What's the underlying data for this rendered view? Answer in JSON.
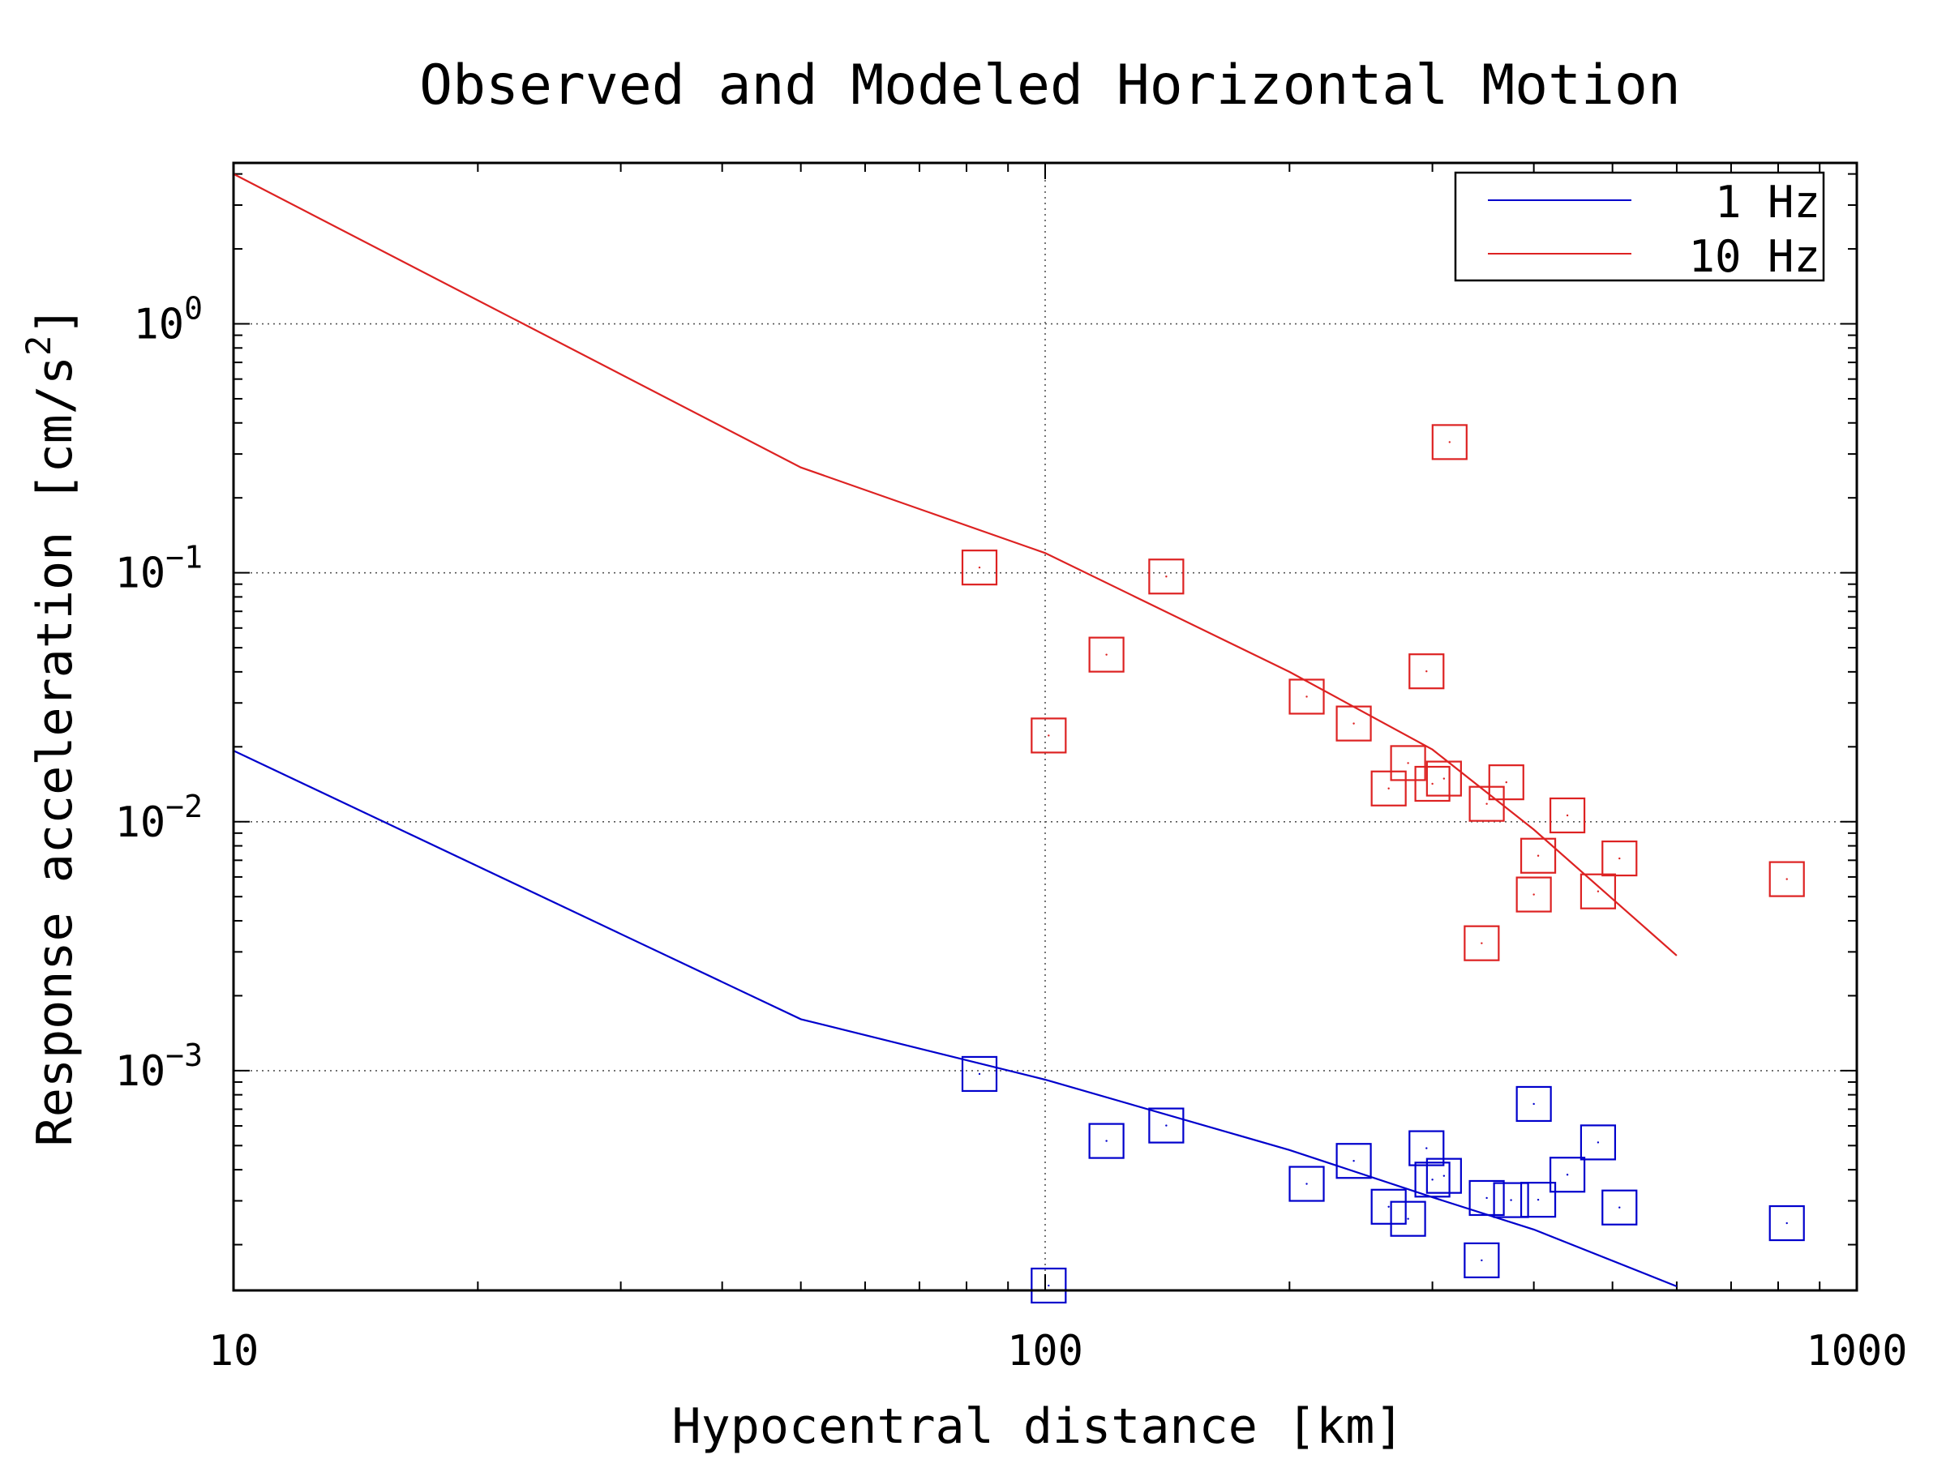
{
  "chart_data": {
    "type": "scatter",
    "title": "Observed and Modeled Horizontal Motion",
    "xlabel": "Hypocentral distance [km]",
    "ylabel": "Response acceleration [cm/s",
    "ylabel_sup": "2",
    "ylabel_close": "]",
    "xscale": "log",
    "yscale": "log",
    "xlim": [
      10,
      1000
    ],
    "ylim": [
      0.000131,
      4.43
    ],
    "grid": true,
    "legend_position": "top-right",
    "x_ticks": [
      {
        "value": 10,
        "label": "10"
      },
      {
        "value": 100,
        "label": "100"
      },
      {
        "value": 1000,
        "label": "1000"
      }
    ],
    "y_ticks": [
      {
        "value": 0.001,
        "base": "10",
        "exp": "−3"
      },
      {
        "value": 0.01,
        "base": "10",
        "exp": "−2"
      },
      {
        "value": 0.1,
        "base": "10",
        "exp": "−1"
      },
      {
        "value": 1,
        "base": "10",
        "exp": "0"
      }
    ],
    "series": [
      {
        "name": "1 Hz",
        "color": "#0000cc",
        "line": {
          "x": [
            10,
            50,
            100,
            200,
            300,
            400,
            600
          ],
          "y": [
            0.0193,
            0.00161,
            0.00092,
            0.00048,
            0.00031,
            0.00023,
            0.000136
          ]
        },
        "observed": {
          "x": [
            83,
            101,
            119,
            141,
            210,
            240,
            265,
            280,
            295,
            300,
            310,
            345,
            350,
            375,
            400,
            405,
            440,
            480,
            510,
            820
          ],
          "y": [
            0.00097,
            0.000137,
            0.000522,
            0.000602,
            0.000351,
            0.000434,
            0.000284,
            0.000254,
            0.000488,
            0.000365,
            0.000378,
            0.000173,
            0.000308,
            0.000302,
            0.000735,
            0.000303,
            0.000382,
            0.000515,
            0.000282,
            0.000244
          ]
        }
      },
      {
        "name": "10 Hz",
        "color": "#dd2222",
        "line": {
          "x": [
            10,
            50,
            100,
            200,
            300,
            400,
            600
          ],
          "y": [
            4.0,
            0.265,
            0.12,
            0.04,
            0.0195,
            0.0093,
            0.0029
          ]
        },
        "observed": {
          "x": [
            83,
            101,
            119,
            141,
            210,
            240,
            265,
            280,
            295,
            300,
            310,
            315,
            345,
            350,
            370,
            400,
            405,
            440,
            480,
            510,
            820
          ],
          "y": [
            0.105,
            0.0222,
            0.0469,
            0.0966,
            0.0318,
            0.0248,
            0.0136,
            0.0172,
            0.0402,
            0.0142,
            0.0149,
            0.335,
            0.00325,
            0.0118,
            0.0144,
            0.0051,
            0.0073,
            0.0106,
            0.00525,
            0.00712,
            0.00588
          ]
        }
      }
    ]
  }
}
